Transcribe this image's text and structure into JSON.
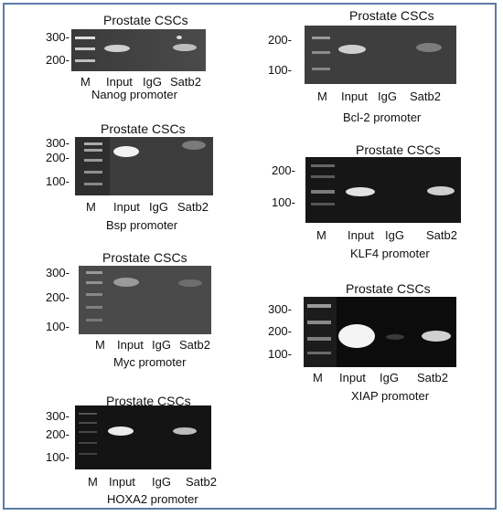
{
  "panels": [
    {
      "id": "nanog",
      "title": "Prostate   CSCs",
      "ticks": [
        "300-",
        "200-"
      ],
      "lanes": [
        "M",
        "Input",
        "IgG",
        "Satb2"
      ],
      "caption": "Nanog promoter"
    },
    {
      "id": "bsp",
      "title": "Prostate CSCs",
      "ticks": [
        "300-",
        "200-",
        "100-"
      ],
      "lanes": [
        "M",
        "Input",
        "IgG",
        "Satb2"
      ],
      "caption": "Bsp promoter"
    },
    {
      "id": "myc",
      "title": "Prostate CSCs",
      "ticks": [
        "300-",
        "200-",
        "100-"
      ],
      "lanes": [
        "M",
        "Input",
        "IgG",
        "Satb2"
      ],
      "caption": "Myc promoter"
    },
    {
      "id": "hoxa2",
      "title": "Prostate CSCs",
      "ticks": [
        "300-",
        "200-",
        "100-"
      ],
      "lanes": [
        "M",
        "Input",
        "IgG",
        "Satb2"
      ],
      "caption": "HOXA2 promoter"
    },
    {
      "id": "bcl2",
      "title": "Prostate CSCs",
      "ticks": [
        "200-",
        "100-"
      ],
      "lanes": [
        "M",
        "Input",
        "IgG",
        "Satb2"
      ],
      "caption": "Bcl-2 promoter"
    },
    {
      "id": "klf4",
      "title": "Prostate CSCs",
      "ticks": [
        "200-",
        "100-"
      ],
      "lanes": [
        "M",
        "Input",
        "IgG",
        "Satb2"
      ],
      "caption": "KLF4 promoter"
    },
    {
      "id": "xiap",
      "title": "Prostate CSCs",
      "ticks": [
        "300-",
        "200-",
        "100-"
      ],
      "lanes": [
        "M",
        "Input",
        "IgG",
        "Satb2"
      ],
      "caption": "XIAP promoter"
    }
  ],
  "colors": {
    "frame": "#5b7aa6",
    "gel_dark": "#111111",
    "gel_mid": "#3a3a3a",
    "band": "#f2f2f2"
  }
}
